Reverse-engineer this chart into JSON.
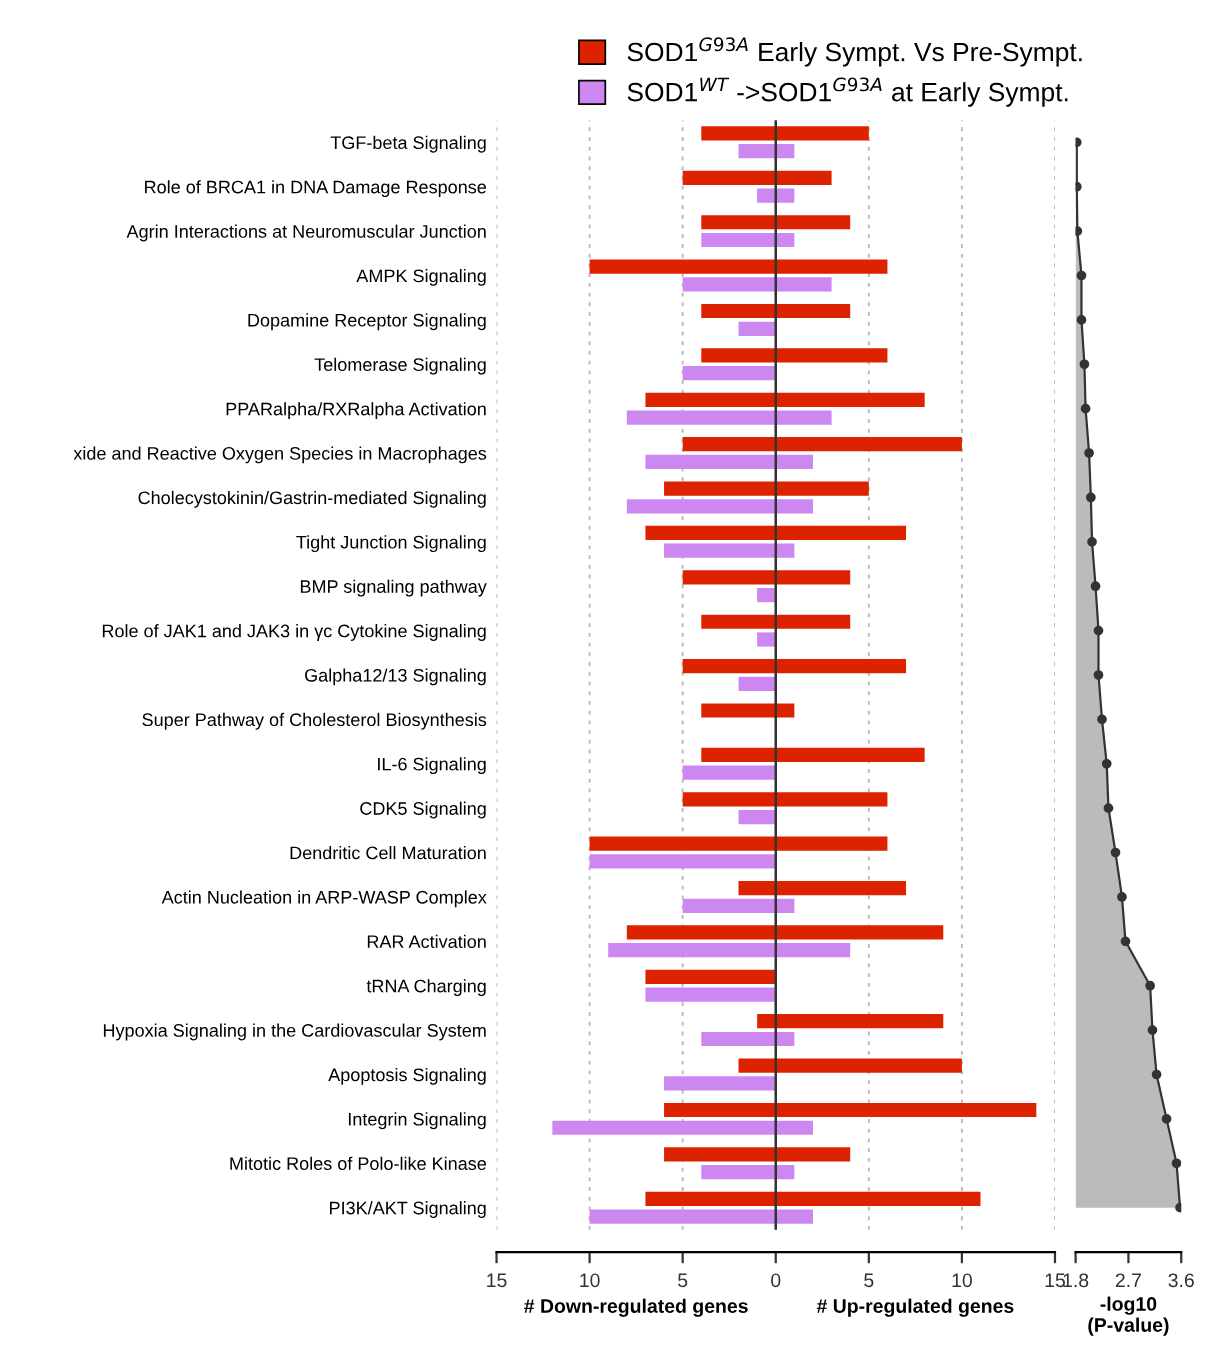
{
  "chart_data": [
    {
      "type": "bar",
      "orientation": "horizontal",
      "categories": [
        "TGF-beta Signaling",
        "Role of BRCA1 in DNA Damage Response",
        "Agrin Interactions at Neuromuscular Junction",
        "AMPK Signaling",
        "Dopamine Receptor Signaling",
        "Telomerase Signaling",
        "PPARalpha/RXRalpha Activation",
        "xide and Reactive Oxygen Species in Macrophages",
        "Cholecystokinin/Gastrin-mediated Signaling",
        "Tight Junction Signaling",
        "BMP signaling pathway",
        "Role of JAK1 and JAK3 in γc Cytokine Signaling",
        "Galpha12/13 Signaling",
        "Super Pathway of Cholesterol Biosynthesis",
        "IL-6 Signaling",
        "CDK5 Signaling",
        "Dendritic Cell Maturation",
        "Actin Nucleation in ARP-WASP Complex",
        "RAR Activation",
        "tRNA Charging",
        "Hypoxia Signaling in the Cardiovascular System",
        "Apoptosis Signaling",
        "Integrin Signaling",
        "Mitotic Roles of Polo-like Kinase",
        "PI3K/AKT Signaling"
      ],
      "series": [
        {
          "name": "SOD1$^{G93A}$ Early Sympt. Vs Pre-Sympt.",
          "color": "#dd2200",
          "base": [
            -4,
            -5,
            -4,
            -10,
            -4,
            -4,
            -7,
            -5,
            -6,
            -7,
            -5,
            -4,
            -5,
            -4,
            -4,
            -5,
            -10,
            -2,
            -8,
            -7,
            -1,
            -2,
            -6,
            -6,
            -7
          ],
          "values": [
            9,
            8,
            8,
            16,
            8,
            10,
            15,
            15,
            11,
            14,
            9,
            8,
            12,
            5,
            12,
            11,
            16,
            9,
            17,
            7,
            10,
            12,
            20,
            10,
            18
          ]
        },
        {
          "name": "SOD1$^{WT}$ ->SOD1$^{G93A}$ at Early Sympt.",
          "color": "#cc88f0",
          "base": [
            -2,
            -1,
            -4,
            -5,
            -2,
            -5,
            -8,
            -7,
            -8,
            -6,
            -1,
            -1,
            -2,
            null,
            -5,
            -2,
            -10,
            -5,
            -9,
            -7,
            -4,
            -6,
            -12,
            -4,
            -10
          ],
          "values": [
            3,
            2,
            5,
            8,
            2,
            5,
            11,
            9,
            10,
            7,
            1,
            1,
            2,
            null,
            5,
            2,
            10,
            6,
            13,
            7,
            5,
            6,
            14,
            5,
            12
          ]
        }
      ],
      "xlim": [
        -15,
        15
      ],
      "xticks": [
        {
          "value": -15,
          "label": "15"
        },
        {
          "value": -10,
          "label": "10"
        },
        {
          "value": -5,
          "label": "5"
        },
        0,
        5,
        10,
        15
      ],
      "xlabel": [
        "# Down-regulated genes",
        "# Up-regulated genes"
      ],
      "ref_lines": [
        {
          "axis": "x",
          "value": 0,
          "color": "#333333"
        }
      ],
      "grid": "x",
      "legend": "top"
    },
    {
      "type": "area",
      "orientation": "horizontal",
      "categories": [
        null,
        null,
        null,
        null,
        null,
        null,
        null,
        null,
        null,
        null,
        null,
        null,
        null,
        null,
        null,
        null,
        null,
        null,
        null,
        null,
        null,
        null,
        null,
        null,
        null
      ],
      "values": [
        1.82,
        1.82,
        1.83,
        1.9,
        1.9,
        1.95,
        1.97,
        2.03,
        2.06,
        2.08,
        2.14,
        2.19,
        2.19,
        2.25,
        2.33,
        2.36,
        2.48,
        2.59,
        2.65,
        3.07,
        3.11,
        3.18,
        3.35,
        3.52,
        3.58
      ],
      "color": "#bbbbbb",
      "marker": "circle",
      "xlim": [
        1.8,
        3.6
      ],
      "xticks": [
        1.8,
        2.7,
        3.6
      ],
      "xlabel": "-log10\n(P-value)"
    }
  ]
}
